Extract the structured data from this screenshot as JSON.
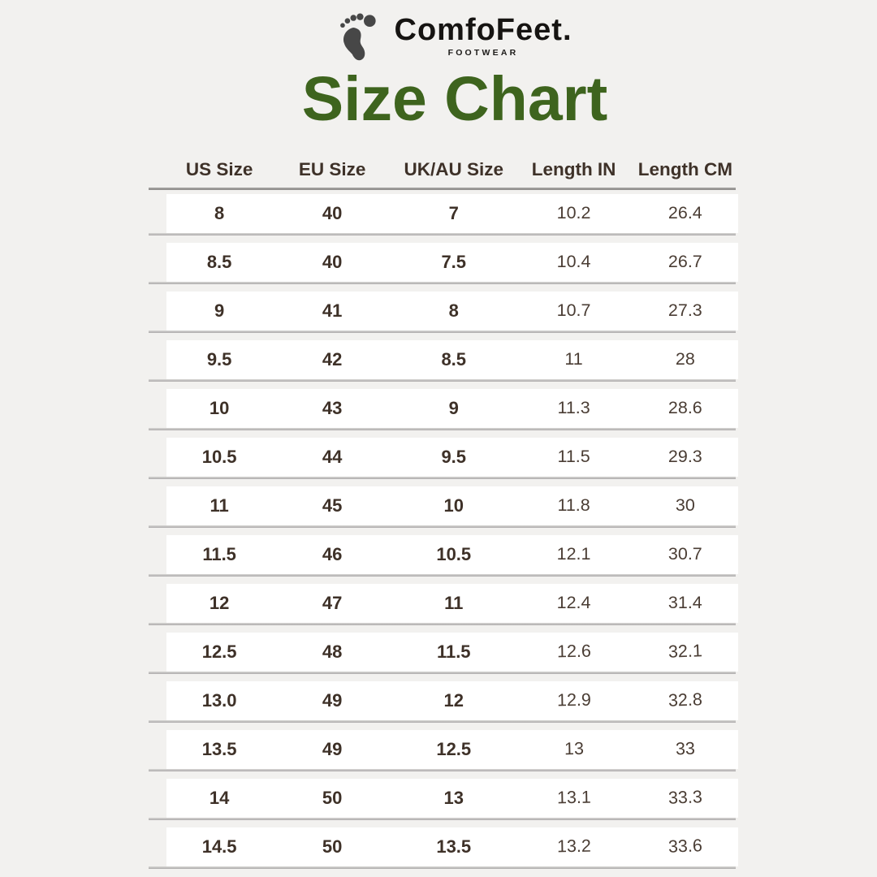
{
  "brand": {
    "name": "ComfoFeet.",
    "tagline": "FOOTWEAR",
    "logo_icon": "footprint-icon"
  },
  "title": "Size Chart",
  "colors": {
    "title_green": "#3e641e",
    "heading_brown": "#3e3128",
    "value_brown": "#4a3d34",
    "background": "#f2f1ef",
    "row_background": "#ffffff",
    "separator_gray": "#adabab",
    "logo_gray": "#474747"
  },
  "chart_data": {
    "type": "table",
    "title": "Size Chart",
    "columns": [
      "US Size",
      "EU Size",
      "UK/AU Size",
      "Length IN",
      "Length CM"
    ],
    "rows": [
      [
        "8",
        "40",
        "7",
        "10.2",
        "26.4"
      ],
      [
        "8.5",
        "40",
        "7.5",
        "10.4",
        "26.7"
      ],
      [
        "9",
        "41",
        "8",
        "10.7",
        "27.3"
      ],
      [
        "9.5",
        "42",
        "8.5",
        "11",
        "28"
      ],
      [
        "10",
        "43",
        "9",
        "11.3",
        "28.6"
      ],
      [
        "10.5",
        "44",
        "9.5",
        "11.5",
        "29.3"
      ],
      [
        "11",
        "45",
        "10",
        "11.8",
        "30"
      ],
      [
        "11.5",
        "46",
        "10.5",
        "12.1",
        "30.7"
      ],
      [
        "12",
        "47",
        "11",
        "12.4",
        "31.4"
      ],
      [
        "12.5",
        "48",
        "11.5",
        "12.6",
        "32.1"
      ],
      [
        "13.0",
        "49",
        "12",
        "12.9",
        "32.8"
      ],
      [
        "13.5",
        "49",
        "12.5",
        "13",
        "33"
      ],
      [
        "14",
        "50",
        "13",
        "13.1",
        "33.3"
      ],
      [
        "14.5",
        "50",
        "13.5",
        "13.2",
        "33.6"
      ]
    ]
  }
}
